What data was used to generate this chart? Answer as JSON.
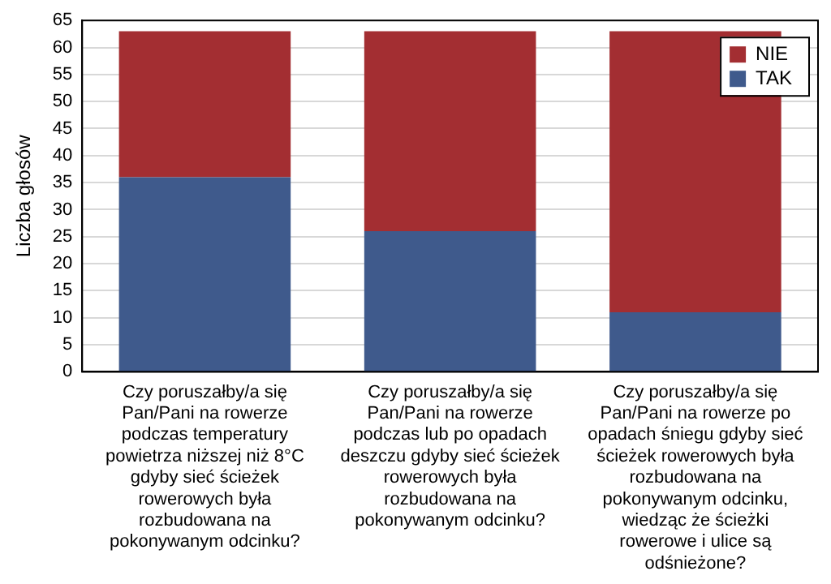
{
  "chart_data": {
    "type": "bar",
    "stacked": true,
    "ylabel": "Liczba głosów",
    "categories": [
      "Czy poruszałby/a się Pan/Pani na rowerze podczas temperatury powietrza niższej niż 8°C gdyby sieć ścieżek rowerowych była rozbudowana na pokonywanym odcinku?",
      "Czy poruszałby/a się Pan/Pani na rowerze podczas lub po opadach deszczu gdyby sieć ścieżek rowerowych była rozbudowana na pokonywanym odcinku?",
      "Czy poruszałby/a się Pan/Pani na rowerze po opadach śniegu gdyby sieć ścieżek rowerowych była rozbudowana na pokonywanym odcinku, wiedząc że ścieżki rowerowe i ulice są odśnieżone?"
    ],
    "series": [
      {
        "name": "TAK",
        "color": "#3f5a8c",
        "values": [
          36,
          26,
          11
        ]
      },
      {
        "name": "NIE",
        "color": "#a32e32",
        "values": [
          27,
          37,
          52
        ]
      }
    ],
    "ylim": [
      0,
      65
    ],
    "yticks": [
      0,
      5,
      10,
      15,
      20,
      25,
      30,
      35,
      40,
      45,
      50,
      55,
      60,
      65
    ],
    "grid": "y",
    "legend": "top right"
  }
}
